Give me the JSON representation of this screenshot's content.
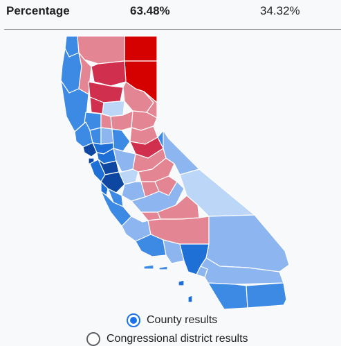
{
  "summary_row": {
    "label": "Percentage",
    "value_1": "63.48%",
    "value_2": "34.32%"
  },
  "map": {
    "legend_colors": {
      "dem_strong": "#0d47a1",
      "dem_mid": "#1e6fd6",
      "dem": "#3d8ae5",
      "dem_light": "#8db6f0",
      "dem_faint": "#bcd6f7",
      "rep_faint": "#f1b8c0",
      "rep_light": "#e38592",
      "rep": "#d0304e",
      "rep_strong": "#d50000"
    }
  },
  "result_options": [
    {
      "label": "County results",
      "selected": true
    },
    {
      "label": "Congressional district results",
      "selected": false
    }
  ]
}
